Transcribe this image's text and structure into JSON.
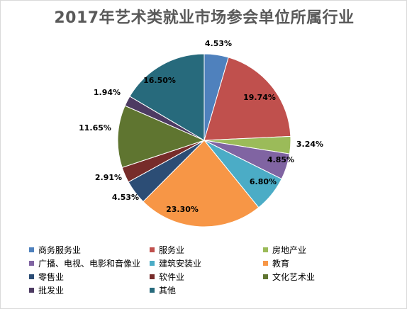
{
  "chart_data": {
    "type": "pie",
    "title": "2017年艺术类就业市场参会单位所属行业",
    "legend_position": "bottom",
    "slices": [
      {
        "name": "商务服务业",
        "value": 4.53,
        "label": "4.53%",
        "color": "#4f81bd"
      },
      {
        "name": "服务业",
        "value": 19.74,
        "label": "19.74%",
        "color": "#c0504d"
      },
      {
        "name": "房地产业",
        "value": 3.24,
        "label": "3.24%",
        "color": "#9bbb59"
      },
      {
        "name": "广播、电视、电影和音像业",
        "value": 4.85,
        "label": "4.85%",
        "color": "#8064a2"
      },
      {
        "name": "建筑安装业",
        "value": 6.8,
        "label": "6.80%",
        "color": "#4bacc6"
      },
      {
        "name": "教育",
        "value": 23.3,
        "label": "23.30%",
        "color": "#f79646"
      },
      {
        "name": "零售业",
        "value": 4.53,
        "label": "4.53%",
        "color": "#2c4d75"
      },
      {
        "name": "软件业",
        "value": 2.91,
        "label": "2.91%",
        "color": "#772c2a"
      },
      {
        "name": "文化艺术业",
        "value": 11.65,
        "label": "11.65%",
        "color": "#5f7530"
      },
      {
        "name": "批发业",
        "value": 1.94,
        "label": "1.94%",
        "color": "#4d3b62"
      },
      {
        "name": "其他",
        "value": 16.5,
        "label": "16.50%",
        "color": "#276a7c"
      }
    ]
  }
}
